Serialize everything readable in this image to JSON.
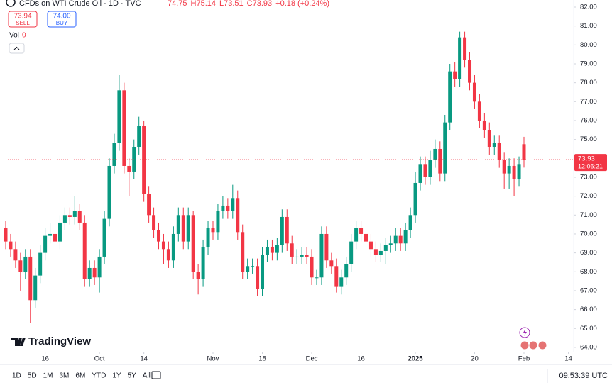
{
  "chart_data": {
    "type": "candlestick",
    "open": [
      70.3,
      69.6,
      69.2,
      68.6,
      68.0,
      68.8,
      66.5,
      67.8,
      69.0,
      69.9,
      70.0,
      69.6,
      70.6,
      71.0,
      70.9,
      71.2,
      70.6,
      67.6,
      68.2,
      67.7,
      68.8,
      70.8,
      73.6,
      74.8,
      77.6,
      73.6,
      73.3,
      74.6,
      75.7,
      72.1,
      71.0,
      70.2,
      69.6,
      69.2,
      68.6,
      70.0,
      71.0,
      69.6,
      71.0,
      68.0,
      67.6,
      69.3,
      70.3,
      70.1,
      71.2,
      71.5,
      71.2,
      71.9,
      70.1,
      68.0,
      68.3,
      68.3,
      67.1,
      68.9,
      69.3,
      69.0,
      69.4,
      70.9,
      69.5,
      68.8,
      68.8,
      68.9,
      68.8,
      67.7,
      67.7,
      70.0,
      68.6,
      68.3,
      67.2,
      67.7,
      68.4,
      69.6,
      70.3,
      70.0,
      69.6,
      69.2,
      68.9,
      69.1,
      69.4,
      69.5,
      69.9,
      69.5,
      70.2,
      71.0,
      72.7,
      73.7,
      73.0,
      73.9,
      74.5,
      73.2,
      75.9,
      78.6,
      78.2,
      80.4,
      79.2,
      78.0,
      77.0,
      76.0,
      75.5,
      74.6,
      74.8,
      73.9,
      73.2,
      73.6,
      72.9,
      74.75
    ],
    "high": [
      70.7,
      70.0,
      69.6,
      69.0,
      69.2,
      69.2,
      68.2,
      69.4,
      70.3,
      70.6,
      70.4,
      71.0,
      71.4,
      71.4,
      72.0,
      71.6,
      71.0,
      68.6,
      68.6,
      69.2,
      71.2,
      74.0,
      75.3,
      78.4,
      78.0,
      74.0,
      75.0,
      76.2,
      76.0,
      72.5,
      71.4,
      70.6,
      70.0,
      69.6,
      70.4,
      71.4,
      71.4,
      71.4,
      71.2,
      68.4,
      69.7,
      70.7,
      70.7,
      71.6,
      72.0,
      71.9,
      72.6,
      72.3,
      70.5,
      68.7,
      68.7,
      68.7,
      69.3,
      69.7,
      69.7,
      69.8,
      71.3,
      71.3,
      69.9,
      69.2,
      69.3,
      69.3,
      69.2,
      68.1,
      70.4,
      70.4,
      69.0,
      68.7,
      68.1,
      68.8,
      70.0,
      70.7,
      70.7,
      70.4,
      70.0,
      69.6,
      69.5,
      69.8,
      69.9,
      70.3,
      70.3,
      70.6,
      71.4,
      73.3,
      74.1,
      74.1,
      74.4,
      75.0,
      74.9,
      76.3,
      79.0,
      79.1,
      80.7,
      80.7,
      79.6,
      78.4,
      77.4,
      76.4,
      75.9,
      75.2,
      75.2,
      74.3,
      74.0,
      74.0,
      74.1,
      75.14
    ],
    "low": [
      69.2,
      68.8,
      68.2,
      67.0,
      67.6,
      65.3,
      66.1,
      67.4,
      68.6,
      69.5,
      69.2,
      69.2,
      70.2,
      70.5,
      70.5,
      70.2,
      67.2,
      67.2,
      67.3,
      66.9,
      68.4,
      70.4,
      73.2,
      74.4,
      73.2,
      72.0,
      72.9,
      74.2,
      71.7,
      70.6,
      69.8,
      69.2,
      68.4,
      68.2,
      68.2,
      69.6,
      69.2,
      69.2,
      67.6,
      66.8,
      67.2,
      68.9,
      69.7,
      69.7,
      70.8,
      70.8,
      70.8,
      69.7,
      67.6,
      67.6,
      67.9,
      66.7,
      66.7,
      68.5,
      68.6,
      68.6,
      69.0,
      69.1,
      68.4,
      68.4,
      68.4,
      68.4,
      67.3,
      67.3,
      67.3,
      68.2,
      67.9,
      66.9,
      66.8,
      67.3,
      68.0,
      69.2,
      69.6,
      69.2,
      68.8,
      68.5,
      68.5,
      68.4,
      69.0,
      69.1,
      69.1,
      69.1,
      69.8,
      70.6,
      72.3,
      72.6,
      72.6,
      73.5,
      72.8,
      72.8,
      75.5,
      77.8,
      77.8,
      78.8,
      77.6,
      76.6,
      75.6,
      75.1,
      74.2,
      74.2,
      73.5,
      72.4,
      72.4,
      72.0,
      72.5,
      73.51
    ],
    "close": [
      69.6,
      69.2,
      68.6,
      68.0,
      68.8,
      66.5,
      67.8,
      69.0,
      69.9,
      70.0,
      69.6,
      70.6,
      71.0,
      70.9,
      71.2,
      70.6,
      67.6,
      68.2,
      67.7,
      68.8,
      70.8,
      73.6,
      74.8,
      77.6,
      73.6,
      73.3,
      74.6,
      75.7,
      72.1,
      71.0,
      70.2,
      69.6,
      69.2,
      68.6,
      70.0,
      71.0,
      69.6,
      71.0,
      68.0,
      67.6,
      69.3,
      70.3,
      70.1,
      71.2,
      71.5,
      71.2,
      71.9,
      70.1,
      68.0,
      68.3,
      68.3,
      67.1,
      68.9,
      69.3,
      69.0,
      69.4,
      70.9,
      69.5,
      68.8,
      68.8,
      68.9,
      68.8,
      67.7,
      67.7,
      70.0,
      68.6,
      68.3,
      67.2,
      67.7,
      68.4,
      69.6,
      70.3,
      70.0,
      69.6,
      69.2,
      68.9,
      69.1,
      69.4,
      69.5,
      69.9,
      69.5,
      70.2,
      71.0,
      72.7,
      73.7,
      73.0,
      73.9,
      74.5,
      73.2,
      75.9,
      78.6,
      78.2,
      80.4,
      79.2,
      78.0,
      77.0,
      76.0,
      75.5,
      74.6,
      74.8,
      73.9,
      73.2,
      73.6,
      72.9,
      73.7,
      73.93
    ],
    "up_color": "#089981",
    "down_color": "#f23645",
    "xlim": [
      -0.43,
      115.07
    ],
    "ylim": [
      63.81,
      82.375
    ],
    "xticks": [
      {
        "value": 8,
        "label": "16"
      },
      {
        "value": 19,
        "label": "Oct"
      },
      {
        "value": 28,
        "label": "14"
      },
      {
        "value": 42,
        "label": "Nov"
      },
      {
        "value": 52,
        "label": "18"
      },
      {
        "value": 62,
        "label": "Dec"
      },
      {
        "value": 72,
        "label": "16"
      },
      {
        "value": 83,
        "label": "2025"
      },
      {
        "value": 95,
        "label": "20"
      },
      {
        "value": 105,
        "label": "Feb"
      },
      {
        "value": 114,
        "label": "14"
      }
    ],
    "yticks": [
      {
        "value": 64,
        "label": "64.00"
      },
      {
        "value": 65,
        "label": "65.00"
      },
      {
        "value": 66,
        "label": "66.00"
      },
      {
        "value": 67,
        "label": "67.00"
      },
      {
        "value": 68,
        "label": "68.00"
      },
      {
        "value": 69,
        "label": "69.00"
      },
      {
        "value": 70,
        "label": "70.00"
      },
      {
        "value": 71,
        "label": "71.00"
      },
      {
        "value": 72,
        "label": "72.00"
      },
      {
        "value": 73,
        "label": "73.00"
      },
      {
        "value": 74,
        "label": "74.00"
      },
      {
        "value": 75,
        "label": "75.00"
      },
      {
        "value": 76,
        "label": "76.00"
      },
      {
        "value": 77,
        "label": "77.00"
      },
      {
        "value": 78,
        "label": "78.00"
      },
      {
        "value": 79,
        "label": "79.00"
      },
      {
        "value": 80,
        "label": "80.00"
      },
      {
        "value": 81,
        "label": "81.00"
      },
      {
        "value": 82,
        "label": "82.00"
      }
    ],
    "grid": false
  },
  "ui": {
    "symbol": "CFDs on WTI Crude Oil · 1D · TVC",
    "ohlc": [
      "74.75",
      "H75.14",
      "L73.51",
      "C73.93",
      "+0.18 (+0.24%)"
    ],
    "sell_price": "73.94",
    "sell": "SELL",
    "buy_price": "74.00",
    "buy": "BUY",
    "vol_label": "Vol",
    "vol_value": "0",
    "countdown": "12:06:21",
    "logo": "TradingView",
    "timeframes": [
      "1D",
      "5D",
      "1M",
      "3M",
      "6M",
      "YTD",
      "1Y",
      "5Y",
      "All"
    ],
    "clock": "09:53:39 UTC"
  }
}
